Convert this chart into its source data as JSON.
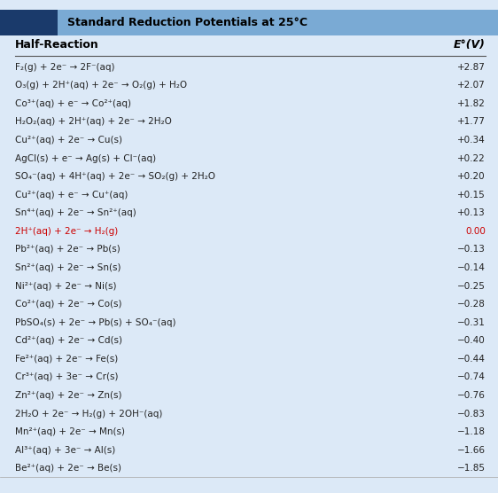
{
  "title": "Standard Reduction Potentials at 25°C",
  "header_left": "Half-Reaction",
  "header_right": "E°(V)",
  "rows": [
    [
      "F₂(g) + 2e⁻ → 2F⁻(aq)",
      "+2.87",
      false
    ],
    [
      "O₃(g) + 2H⁺(aq) + 2e⁻ → O₂(g) + H₂O",
      "+2.07",
      false
    ],
    [
      "Co³⁺(aq) + e⁻ → Co²⁺(aq)",
      "+1.82",
      false
    ],
    [
      "H₂O₂(aq) + 2H⁺(aq) + 2e⁻ → 2H₂O",
      "+1.77",
      false
    ],
    [
      "Cu²⁺(aq) + 2e⁻ → Cu(s)",
      "+0.34",
      false
    ],
    [
      "AgCl(s) + e⁻ → Ag(s) + Cl⁻(aq)",
      "+0.22",
      false
    ],
    [
      "SO₄⁻(aq) + 4H⁺(aq) + 2e⁻ → SO₂(g) + 2H₂O",
      "+0.20",
      false
    ],
    [
      "Cu²⁺(aq) + e⁻ → Cu⁺(aq)",
      "+0.15",
      false
    ],
    [
      "Sn⁴⁺(aq) + 2e⁻ → Sn²⁺(aq)",
      "+0.13",
      false
    ],
    [
      "2H⁺(aq) + 2e⁻ → H₂(g)",
      "0.00",
      true
    ],
    [
      "Pb²⁺(aq) + 2e⁻ → Pb(s)",
      "−0.13",
      false
    ],
    [
      "Sn²⁺(aq) + 2e⁻ → Sn(s)",
      "−0.14",
      false
    ],
    [
      "Ni²⁺(aq) + 2e⁻ → Ni(s)",
      "−0.25",
      false
    ],
    [
      "Co²⁺(aq) + 2e⁻ → Co(s)",
      "−0.28",
      false
    ],
    [
      "PbSO₄(s) + 2e⁻ → Pb(s) + SO₄⁻(aq)",
      "−0.31",
      false
    ],
    [
      "Cd²⁺(aq) + 2e⁻ → Cd(s)",
      "−0.40",
      false
    ],
    [
      "Fe²⁺(aq) + 2e⁻ → Fe(s)",
      "−0.44",
      false
    ],
    [
      "Cr³⁺(aq) + 3e⁻ → Cr(s)",
      "−0.74",
      false
    ],
    [
      "Zn²⁺(aq) + 2e⁻ → Zn(s)",
      "−0.76",
      false
    ],
    [
      "2H₂O + 2e⁻ → H₂(g) + 2OH⁻(aq)",
      "−0.83",
      false
    ],
    [
      "Mn²⁺(aq) + 2e⁻ → Mn(s)",
      "−1.18",
      false
    ],
    [
      "Al³⁺(aq) + 3e⁻ → Al(s)",
      "−1.66",
      false
    ],
    [
      "Be²⁺(aq) + 2e⁻ → Be(s)",
      "−1.85",
      false
    ]
  ],
  "bg_color": "#dce9f7",
  "header_bg": "#1a3a6b",
  "title_bar_color": "#7aaad4",
  "red_row_color": "#cc0000",
  "normal_color": "#222222",
  "title_fontsize": 9,
  "header_fontsize": 9,
  "row_fontsize": 7.5
}
